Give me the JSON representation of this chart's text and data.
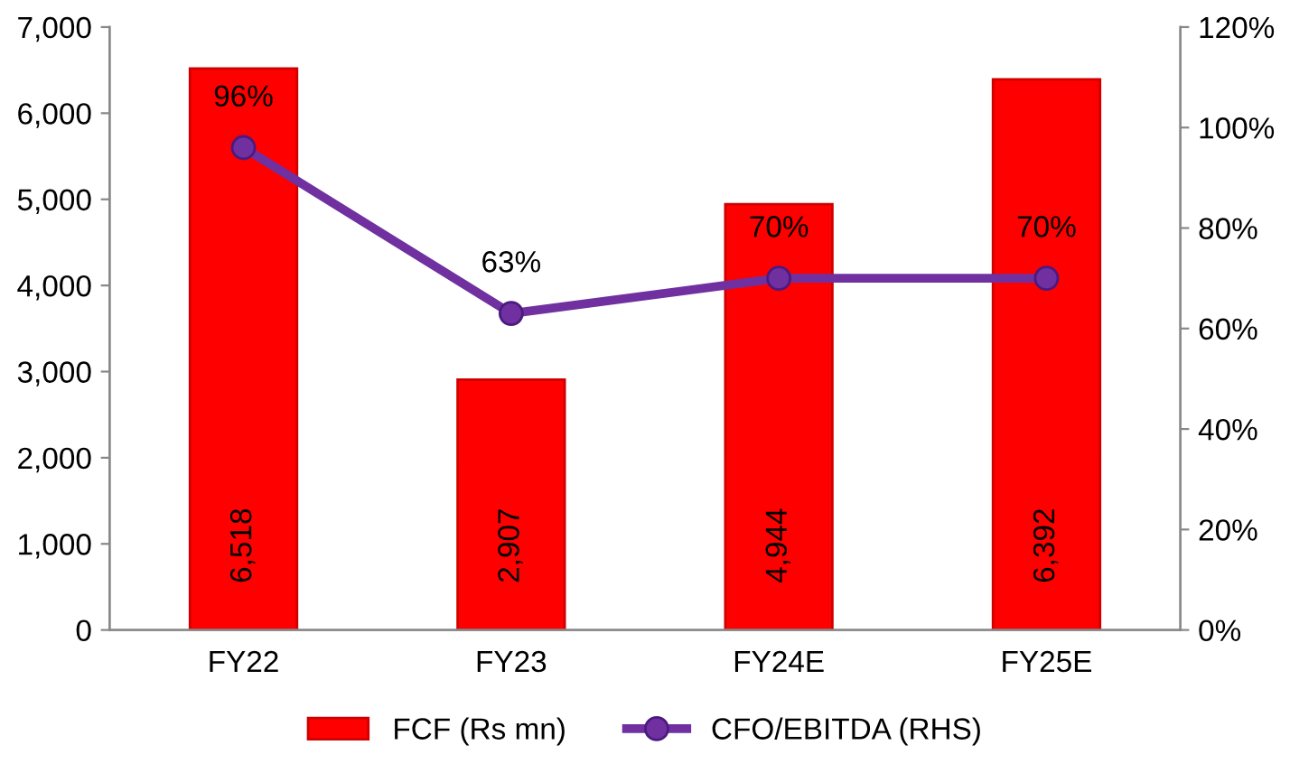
{
  "chart_data": {
    "type": "bar",
    "categories": [
      "FY22",
      "FY23",
      "FY24E",
      "FY25E"
    ],
    "series": [
      {
        "name": "FCF (Rs mn)",
        "color": "#ff0000",
        "values": [
          6518,
          2907,
          4944,
          6392
        ],
        "value_labels": [
          "6,518",
          "2,907",
          "4,944",
          "6,392"
        ]
      },
      {
        "name": "CFO/EBITDA (RHS)",
        "type": "line",
        "axis": "y2",
        "color": "#7030a0",
        "values": [
          96,
          63,
          70,
          70
        ],
        "value_labels": [
          "96%",
          "63%",
          "70%",
          "70%"
        ]
      }
    ],
    "ylim": [
      0,
      7000
    ],
    "yticks": [
      {
        "value": 0,
        "label": "0"
      },
      {
        "value": 1000,
        "label": "1,000"
      },
      {
        "value": 2000,
        "label": "2,000"
      },
      {
        "value": 3000,
        "label": "3,000"
      },
      {
        "value": 4000,
        "label": "4,000"
      },
      {
        "value": 5000,
        "label": "5,000"
      },
      {
        "value": 6000,
        "label": "6,000"
      },
      {
        "value": 7000,
        "label": "7,000"
      }
    ],
    "y2lim": [
      0,
      120
    ],
    "y2ticks": [
      {
        "value": 0,
        "label": "0%"
      },
      {
        "value": 20,
        "label": "20%"
      },
      {
        "value": 40,
        "label": "40%"
      },
      {
        "value": 60,
        "label": "60%"
      },
      {
        "value": 80,
        "label": "80%"
      },
      {
        "value": 100,
        "label": "100%"
      },
      {
        "value": 120,
        "label": "120%"
      }
    ],
    "marker": "circle",
    "line_style": "solid",
    "legend": "bottom",
    "grid": false
  }
}
